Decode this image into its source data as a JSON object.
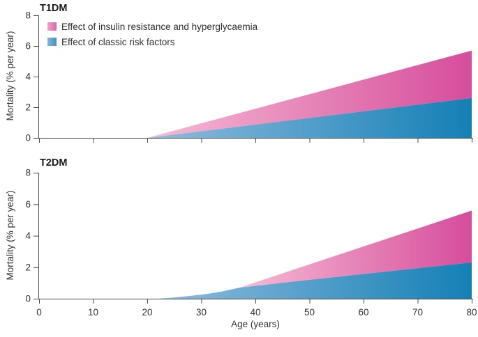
{
  "colors": {
    "axis": "#4a4a4a",
    "text": "#333333",
    "background": "#ffffff"
  },
  "legend": {
    "items": [
      {
        "label": "Effect of insulin resistance and hyperglycaemia",
        "swatch_gradient": [
          "#eda2c8",
          "#dd66a6"
        ]
      },
      {
        "label": "Effect of classic risk factors",
        "swatch_gradient": [
          "#8cb4d7",
          "#3f92c3"
        ]
      }
    ]
  },
  "x_axis": {
    "label": "Age (years)",
    "range": [
      0,
      80
    ],
    "ticks": [
      0,
      10,
      20,
      30,
      40,
      50,
      60,
      70,
      80
    ]
  },
  "y_axis": {
    "label": "Mortality (% per year)",
    "range": [
      0,
      8
    ],
    "ticks": [
      0,
      2,
      4,
      6,
      8
    ]
  },
  "chart_data": [
    {
      "type": "area",
      "title": "T1DM",
      "xlabel": "Age (years)",
      "ylabel": "Mortality (% per year)",
      "xlim": [
        0,
        80
      ],
      "ylim": [
        0,
        8
      ],
      "xticks": [
        0,
        10,
        20,
        30,
        40,
        50,
        60,
        70,
        80
      ],
      "yticks": [
        0,
        2,
        4,
        6,
        8
      ],
      "x_tick_labels_visible": false,
      "grid": false,
      "legend_position": "top-left",
      "series": [
        {
          "name": "Effect of classic risk factors",
          "role": "lower-band",
          "gradient": [
            "#90bcdd",
            "#1480b6"
          ],
          "points": [
            [
              20,
              0
            ],
            [
              80,
              2.6
            ]
          ]
        },
        {
          "name": "Effect of insulin resistance and hyperglycaemia",
          "role": "upper-band-top-edge (total mortality)",
          "gradient": [
            "#f6bcd4",
            "#d64d9c"
          ],
          "points": [
            [
              20,
              0
            ],
            [
              80,
              5.7
            ]
          ]
        }
      ]
    },
    {
      "type": "area",
      "title": "T2DM",
      "xlabel": "Age (years)",
      "ylabel": "Mortality (% per year)",
      "xlim": [
        0,
        80
      ],
      "ylim": [
        0,
        8
      ],
      "xticks": [
        0,
        10,
        20,
        30,
        40,
        50,
        60,
        70,
        80
      ],
      "yticks": [
        0,
        2,
        4,
        6,
        8
      ],
      "x_tick_labels_visible": true,
      "grid": false,
      "series": [
        {
          "name": "Effect of classic risk factors",
          "role": "lower-band",
          "gradient": [
            "#90bcdd",
            "#1480b6"
          ],
          "points": [
            [
              22,
              0
            ],
            [
              25,
              0.08
            ],
            [
              28,
              0.18
            ],
            [
              31,
              0.3
            ],
            [
              34,
              0.47
            ],
            [
              37,
              0.7
            ],
            [
              50,
              1.2
            ],
            [
              65,
              1.75
            ],
            [
              80,
              2.3
            ]
          ]
        },
        {
          "name": "Effect of insulin resistance and hyperglycaemia",
          "role": "upper-band-top-edge (total mortality)",
          "gradient": [
            "#f6bcd4",
            "#d64d9c"
          ],
          "points": [
            [
              37,
              0.7
            ],
            [
              80,
              5.6
            ]
          ]
        }
      ]
    }
  ]
}
